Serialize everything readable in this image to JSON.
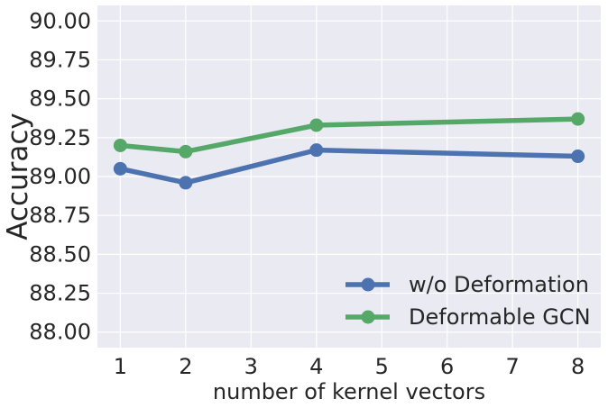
{
  "chart_data": {
    "type": "line",
    "title": "",
    "xlabel": "number of kernel vectors",
    "ylabel": "Accuracy",
    "x_ticks": [
      "1",
      "2",
      "3",
      "4",
      "5",
      "6",
      "7",
      "8"
    ],
    "y_ticks": [
      "88.00",
      "88.25",
      "88.50",
      "88.75",
      "89.00",
      "89.25",
      "89.50",
      "89.75",
      "90.00"
    ],
    "xlim": [
      0.65,
      8.35
    ],
    "ylim": [
      87.9,
      90.1
    ],
    "grid": true,
    "legend_position": "lower-right",
    "series": [
      {
        "name": "w/o Deformation",
        "color": "#4c72b0",
        "x": [
          1,
          2,
          4,
          8
        ],
        "y": [
          89.05,
          88.96,
          89.17,
          89.13
        ]
      },
      {
        "name": "Deformable GCN",
        "color": "#55a868",
        "x": [
          1,
          2,
          4,
          8
        ],
        "y": [
          89.2,
          89.16,
          89.33,
          89.37
        ]
      }
    ]
  }
}
